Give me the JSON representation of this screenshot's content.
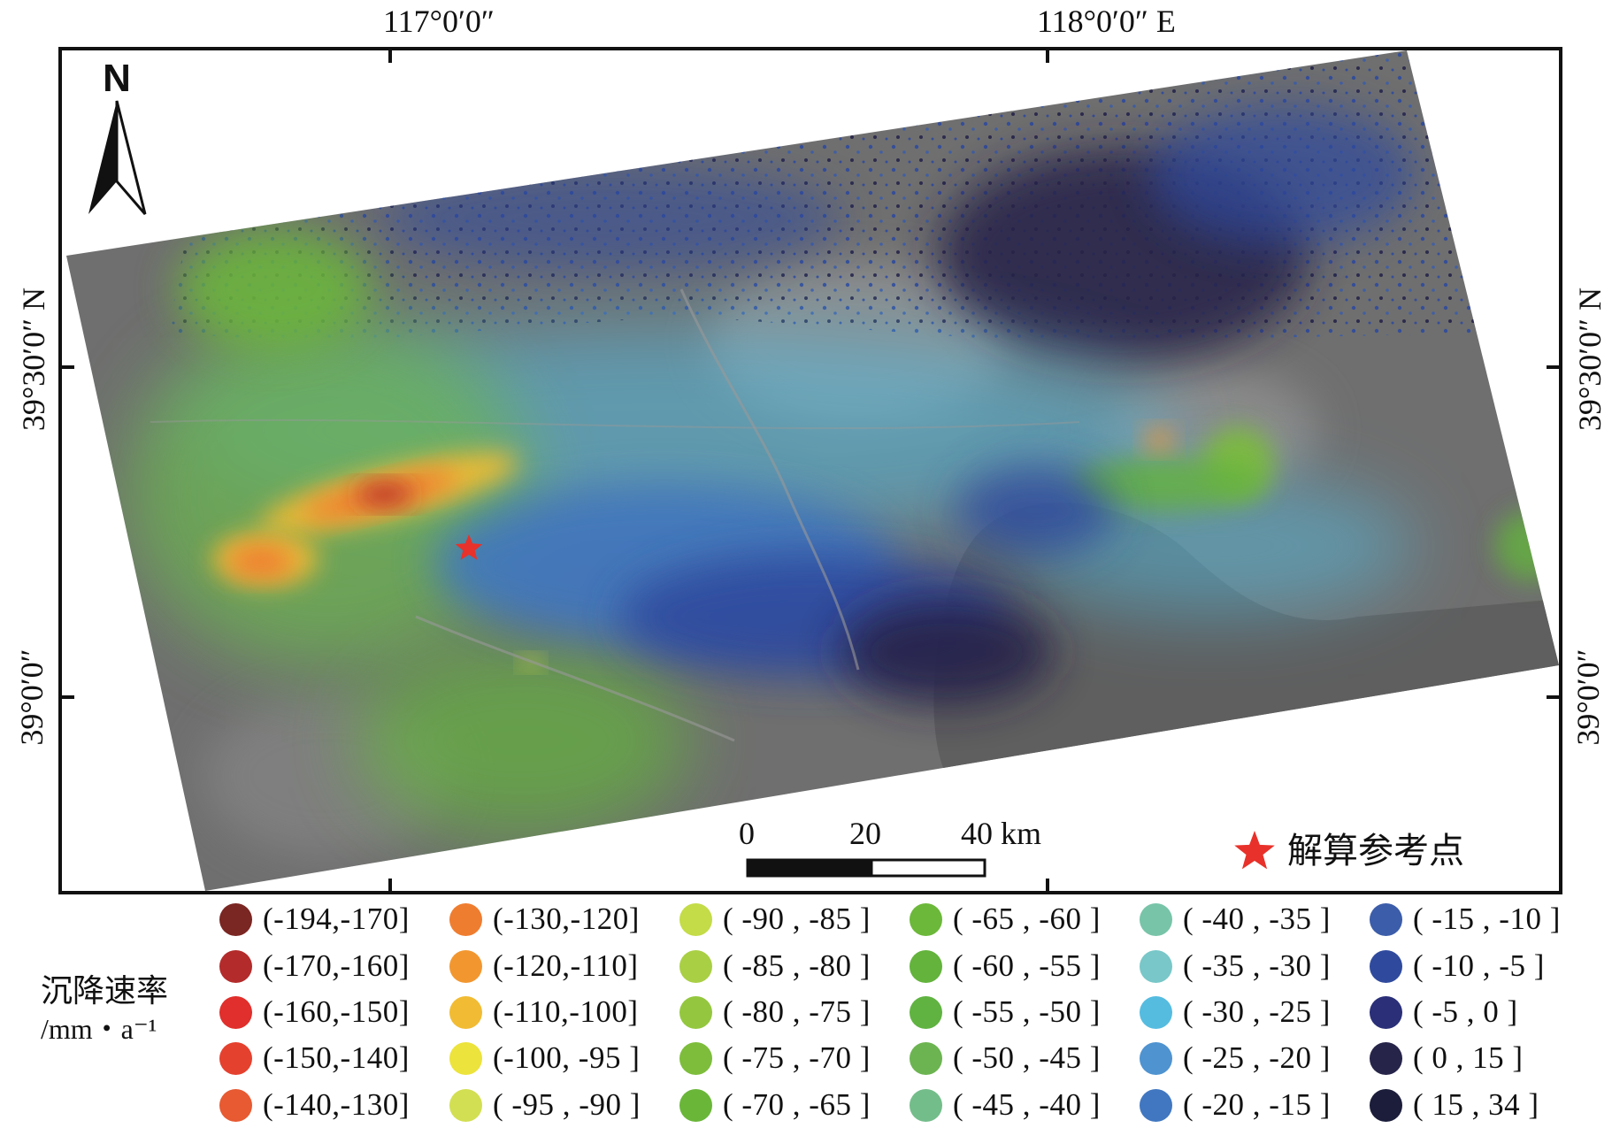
{
  "map": {
    "top_axis": {
      "lon_117": "117°0′0″",
      "lon_118": "118°0′0″ E"
    },
    "left_axis": {
      "lat_39_30": "39°30′0″ N",
      "lat_39_00": "39°0′0″"
    },
    "right_axis": {
      "lat_39_30": "39°30′0″ N",
      "lat_39_00": "39°0′0″"
    },
    "north_arrow": {
      "label": "N"
    },
    "scale_bar": {
      "tick_0": "0",
      "tick_20": "20",
      "tick_40": "40 km"
    },
    "reference_point": {
      "label": "解算参考点",
      "color": "#e8312a"
    },
    "colors": {
      "background_image": "#707070",
      "sea": "#5f5f5f"
    }
  },
  "legend": {
    "title_line1": "沉降速率",
    "title_line2": "/mm・a⁻¹",
    "items": [
      {
        "label": "(-194,-170]",
        "color": "#7a2622"
      },
      {
        "label": "(-170,-160]",
        "color": "#b32b2b"
      },
      {
        "label": "(-160,-150]",
        "color": "#e02f2c"
      },
      {
        "label": "(-150,-140]",
        "color": "#e5412f"
      },
      {
        "label": "(-140,-130]",
        "color": "#e75a32"
      },
      {
        "label": "(-130,-120]",
        "color": "#ef7d30"
      },
      {
        "label": "(-120,-110]",
        "color": "#f29730"
      },
      {
        "label": "(-110,-100]",
        "color": "#f1bc34"
      },
      {
        "label": "(-100, -95 ]",
        "color": "#ece33c"
      },
      {
        "label": "( -95 , -90 ]",
        "color": "#d2df52"
      },
      {
        "label": "( -90 , -85 ]",
        "color": "#c3dc48"
      },
      {
        "label": "( -85 , -80 ]",
        "color": "#a9cf44"
      },
      {
        "label": "( -80 , -75 ]",
        "color": "#94c73f"
      },
      {
        "label": "( -75 , -70 ]",
        "color": "#7dbd3b"
      },
      {
        "label": "( -70 , -65 ]",
        "color": "#6ab639"
      },
      {
        "label": "( -65 , -60 ]",
        "color": "#6cb83a"
      },
      {
        "label": "( -60 , -55 ]",
        "color": "#63b33c"
      },
      {
        "label": "( -55 , -50 ]",
        "color": "#60b341"
      },
      {
        "label": "( -50 , -45 ]",
        "color": "#6cb451"
      },
      {
        "label": "( -45 , -40 ]",
        "color": "#73bd8a"
      },
      {
        "label": "( -40 , -35 ]",
        "color": "#78c4a9"
      },
      {
        "label": "( -35 , -30 ]",
        "color": "#79c7c8"
      },
      {
        "label": "( -30 , -25 ]",
        "color": "#55bce0"
      },
      {
        "label": "( -25 , -20 ]",
        "color": "#4f93d0"
      },
      {
        "label": "( -20 , -15 ]",
        "color": "#4177c0"
      },
      {
        "label": "( -15 , -10 ]",
        "color": "#3c5da9"
      },
      {
        "label": "( -10 , -5 ]",
        "color": "#2f4a9d"
      },
      {
        "label": "( -5 , 0 ]",
        "color": "#2a2f78"
      },
      {
        "label": "( 0 , 15 ]",
        "color": "#262449"
      },
      {
        "label": "( 15 , 34 ]",
        "color": "#1b1d3a"
      }
    ]
  }
}
